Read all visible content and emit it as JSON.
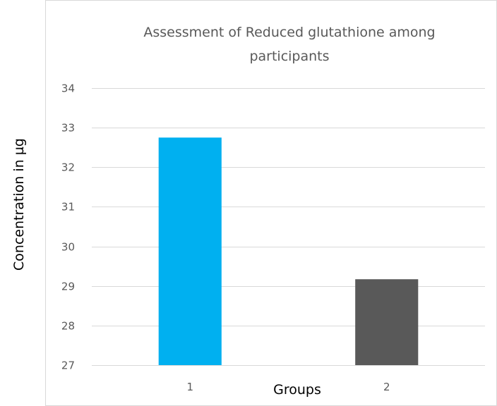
{
  "chart_data": {
    "type": "bar",
    "title_lines": [
      "Assessment of Reduced glutathione among",
      "participants"
    ],
    "xlabel": "Groups",
    "ylabel": "Concentration in µg",
    "categories": [
      "1",
      "2"
    ],
    "values": [
      32.75,
      29.17
    ],
    "bar_colors": [
      "#00b0f0",
      "#595959"
    ],
    "ylim": [
      27,
      34
    ],
    "yticks": [
      27,
      28,
      29,
      30,
      31,
      32,
      33,
      34
    ],
    "grid": true,
    "legend": "none"
  }
}
